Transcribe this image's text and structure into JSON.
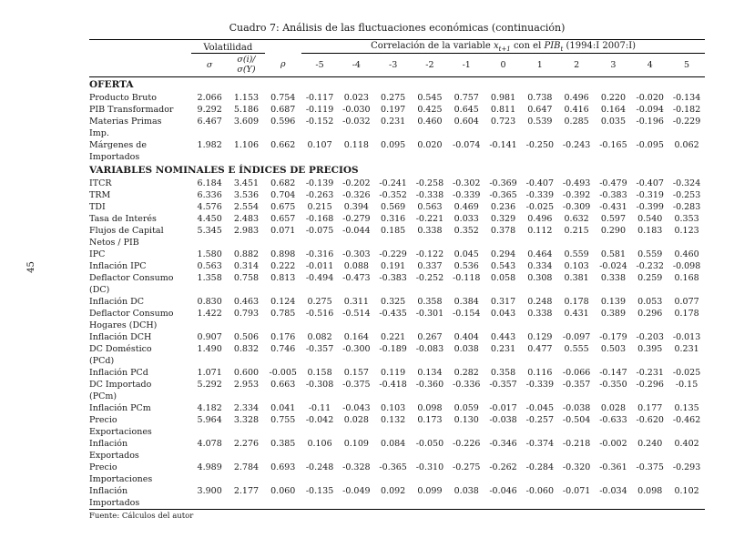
{
  "page": {
    "page_number": "45",
    "title": "Cuadro 7: Análisis de las fluctuaciones económicas (continuación)",
    "footer": "Fuente: Cálculos del autor"
  },
  "table": {
    "group_volatilidad": "Volatilidad",
    "correlacion": {
      "part1": "Correlación de la variable ",
      "var": "x",
      "var_sub": "t+1",
      "part2": " con el ",
      "pib": "PIB",
      "pib_sub": "t",
      "part3": " (1994:I 2007:I)"
    },
    "sub_headers": [
      "σ",
      "σ(i)/σ(Y)",
      "ρ",
      "-5",
      "-4",
      "-3",
      "-2",
      "-1",
      "0",
      "1",
      "2",
      "3",
      "4",
      "5"
    ],
    "sections": [
      {
        "label": "OFERTA",
        "rows": [
          {
            "label": "Producto Bruto",
            "values": [
              "2.066",
              "1.153",
              "0.754",
              "-0.117",
              "0.023",
              "0.275",
              "0.545",
              "0.757",
              "0.981",
              "0.738",
              "0.496",
              "0.220",
              "-0.020",
              "-0.134"
            ]
          },
          {
            "label": "PIB Transformador",
            "values": [
              "9.292",
              "5.186",
              "0.687",
              "-0.119",
              "-0.030",
              "0.197",
              "0.425",
              "0.645",
              "0.811",
              "0.647",
              "0.416",
              "0.164",
              "-0.094",
              "-0.182"
            ]
          },
          {
            "label": "Materias Primas\nImp.",
            "values": [
              "6.467",
              "3.609",
              "0.596",
              "-0.152",
              "-0.032",
              "0.231",
              "0.460",
              "0.604",
              "0.723",
              "0.539",
              "0.285",
              "0.035",
              "-0.196",
              "-0.229"
            ]
          },
          {
            "label": "Márgenes de\nImportados",
            "values": [
              "1.982",
              "1.106",
              "0.662",
              "0.107",
              "0.118",
              "0.095",
              "0.020",
              "-0.074",
              "-0.141",
              "-0.250",
              "-0.243",
              "-0.165",
              "-0.095",
              "0.062"
            ]
          }
        ]
      },
      {
        "label": "VARIABLES NOMINALES E ÍNDICES DE PRECIOS",
        "rows": [
          {
            "label": "ITCR",
            "values": [
              "6.184",
              "3.451",
              "0.682",
              "-0.139",
              "-0.202",
              "-0.241",
              "-0.258",
              "-0.302",
              "-0.369",
              "-0.407",
              "-0.493",
              "-0.479",
              "-0.407",
              "-0.324"
            ]
          },
          {
            "label": "TRM",
            "values": [
              "6.336",
              "3.536",
              "0.704",
              "-0.263",
              "-0.326",
              "-0.352",
              "-0.338",
              "-0.339",
              "-0.365",
              "-0.339",
              "-0.392",
              "-0.383",
              "-0.319",
              "-0.253"
            ]
          },
          {
            "label": "TDI",
            "values": [
              "4.576",
              "2.554",
              "0.675",
              "0.215",
              "0.394",
              "0.569",
              "0.563",
              "0.469",
              "0.236",
              "-0.025",
              "-0.309",
              "-0.431",
              "-0.399",
              "-0.283"
            ]
          },
          {
            "label": "Tasa de Interés",
            "values": [
              "4.450",
              "2.483",
              "0.657",
              "-0.168",
              "-0.279",
              "0.316",
              "-0.221",
              "0.033",
              "0.329",
              "0.496",
              "0.632",
              "0.597",
              "0.540",
              "0.353"
            ]
          },
          {
            "label": "Flujos de Capital\nNetos / PIB",
            "values": [
              "5.345",
              "2.983",
              "0.071",
              "-0.075",
              "-0.044",
              "0.185",
              "0.338",
              "0.352",
              "0.378",
              "0.112",
              "0.215",
              "0.290",
              "0.183",
              "0.123"
            ]
          },
          {
            "label": "IPC",
            "values": [
              "1.580",
              "0.882",
              "0.898",
              "-0.316",
              "-0.303",
              "-0.229",
              "-0.122",
              "0.045",
              "0.294",
              "0.464",
              "0.559",
              "0.581",
              "0.559",
              "0.460"
            ]
          },
          {
            "label": "Inflación IPC",
            "values": [
              "0.563",
              "0.314",
              "0.222",
              "-0.011",
              "0.088",
              "0.191",
              "0.337",
              "0.536",
              "0.543",
              "0.334",
              "0.103",
              "-0.024",
              "-0.232",
              "-0.098"
            ]
          },
          {
            "label": "Deflactor Consumo\n(DC)",
            "values": [
              "1.358",
              "0.758",
              "0.813",
              "-0.494",
              "-0.473",
              "-0.383",
              "-0.252",
              "-0.118",
              "0.058",
              "0.308",
              "0.381",
              "0.338",
              "0.259",
              "0.168"
            ]
          },
          {
            "label": "Inflación DC",
            "values": [
              "0.830",
              "0.463",
              "0.124",
              "0.275",
              "0.311",
              "0.325",
              "0.358",
              "0.384",
              "0.317",
              "0.248",
              "0.178",
              "0.139",
              "0.053",
              "0.077"
            ]
          },
          {
            "label": "Deflactor Consumo\nHogares (DCH)",
            "values": [
              "1.422",
              "0.793",
              "0.785",
              "-0.516",
              "-0.514",
              "-0.435",
              "-0.301",
              "-0.154",
              "0.043",
              "0.338",
              "0.431",
              "0.389",
              "0.296",
              "0.178"
            ]
          },
          {
            "label": "Inflación DCH",
            "values": [
              "0.907",
              "0.506",
              "0.176",
              "0.082",
              "0.164",
              "0.221",
              "0.267",
              "0.404",
              "0.443",
              "0.129",
              "-0.097",
              "-0.179",
              "-0.203",
              "-0.013"
            ]
          },
          {
            "label": "DC Doméstico\n(PCd)",
            "values": [
              "1.490",
              "0.832",
              "0.746",
              "-0.357",
              "-0.300",
              "-0.189",
              "-0.083",
              "0.038",
              "0.231",
              "0.477",
              "0.555",
              "0.503",
              "0.395",
              "0.231"
            ]
          },
          {
            "label": "Inflación PCd",
            "values": [
              "1.071",
              "0.600",
              "-0.005",
              "0.158",
              "0.157",
              "0.119",
              "0.134",
              "0.282",
              "0.358",
              "0.116",
              "-0.066",
              "-0.147",
              "-0.231",
              "-0.025"
            ]
          },
          {
            "label": "DC Importado\n(PCm)",
            "values": [
              "5.292",
              "2.953",
              "0.663",
              "-0.308",
              "-0.375",
              "-0.418",
              "-0.360",
              "-0.336",
              "-0.357",
              "-0.339",
              "-0.357",
              "-0.350",
              "-0.296",
              "-0.15"
            ]
          },
          {
            "label": "Inflación PCm",
            "values": [
              "4.182",
              "2.334",
              "0.041",
              "-0.11",
              "-0.043",
              "0.103",
              "0.098",
              "0.059",
              "-0.017",
              "-0.045",
              "-0.038",
              "0.028",
              "0.177",
              "0.135"
            ]
          },
          {
            "label": "Precio\nExportaciones",
            "values": [
              "5.964",
              "3.328",
              "0.755",
              "-0.042",
              "0.028",
              "0.132",
              "0.173",
              "0.130",
              "-0.038",
              "-0.257",
              "-0.504",
              "-0.633",
              "-0.620",
              "-0.462"
            ]
          },
          {
            "label": "Inflación\nExportados",
            "values": [
              "4.078",
              "2.276",
              "0.385",
              "0.106",
              "0.109",
              "0.084",
              "-0.050",
              "-0.226",
              "-0.346",
              "-0.374",
              "-0.218",
              "-0.002",
              "0.240",
              "0.402"
            ]
          },
          {
            "label": "Precio\nImportaciones",
            "values": [
              "4.989",
              "2.784",
              "0.693",
              "-0.248",
              "-0.328",
              "-0.365",
              "-0.310",
              "-0.275",
              "-0.262",
              "-0.284",
              "-0.320",
              "-0.361",
              "-0.375",
              "-0.293"
            ]
          },
          {
            "label": "Inflación\nImportados",
            "values": [
              "3.900",
              "2.177",
              "0.060",
              "-0.135",
              "-0.049",
              "0.092",
              "0.099",
              "0.038",
              "-0.046",
              "-0.060",
              "-0.071",
              "-0.034",
              "0.098",
              "0.102"
            ]
          }
        ]
      }
    ]
  }
}
